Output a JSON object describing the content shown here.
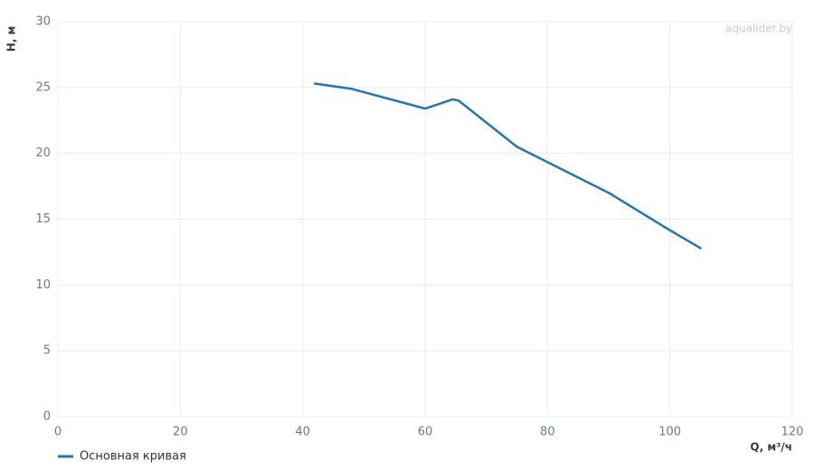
{
  "chart_data": {
    "type": "line",
    "watermark": "aqualider.by",
    "x_label": "Q, м³/ч",
    "y_label": "H, м",
    "x": [
      42,
      48,
      60,
      64.5,
      65.5,
      75,
      90,
      99.5,
      105
    ],
    "series": [
      {
        "name": "Основная кривая",
        "color": "#1f77b4",
        "values": [
          25.3,
          24.9,
          23.4,
          24.1,
          24.0,
          20.5,
          17.0,
          14.3,
          12.8
        ]
      }
    ],
    "xlim": [
      0,
      120
    ],
    "xticks": [
      0,
      20,
      40,
      60,
      80,
      100,
      120
    ],
    "ylim": [
      0,
      30
    ],
    "yticks": [
      0,
      5,
      10,
      15,
      20,
      25,
      30
    ],
    "grid": true,
    "legend": "bottom-left"
  }
}
